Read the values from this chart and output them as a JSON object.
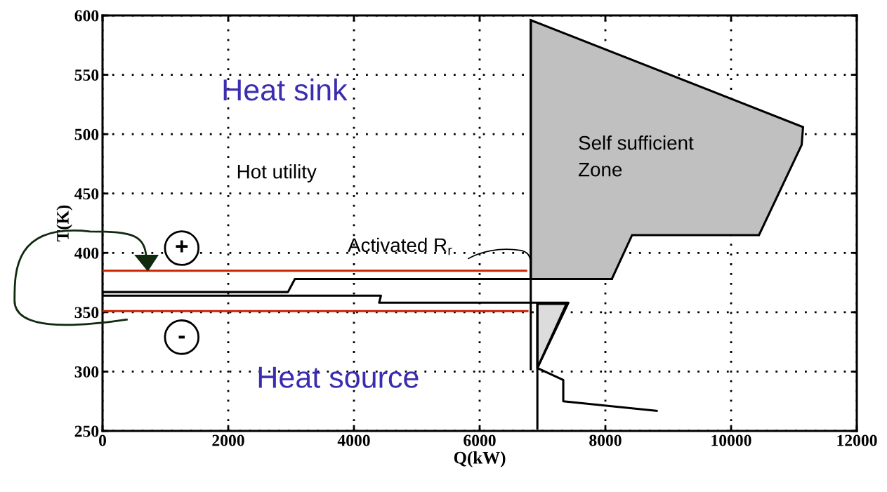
{
  "chart_data": {
    "type": "line",
    "xlabel": "Q(kW)",
    "ylabel": "T(K)",
    "xlim": [
      0,
      12000
    ],
    "ylim": [
      250,
      600
    ],
    "xticks": [
      0,
      2000,
      4000,
      6000,
      8000,
      10000,
      12000
    ],
    "yticks": [
      250,
      300,
      350,
      400,
      450,
      500,
      550,
      600
    ],
    "grid": true,
    "line_style": "solid",
    "marker": "none",
    "series": [
      {
        "type": "area",
        "color": "#c0c0c0",
        "x": [
          6813,
          6813,
          11145,
          11123,
          10444,
          8425,
          8103,
          6813
        ],
        "values": [
          378,
          596,
          506,
          491,
          415,
          415,
          378,
          378
        ]
      },
      {
        "type": "area",
        "color": "#dcdcdc",
        "x": [
          6918,
          7380,
          6918
        ],
        "values": [
          357,
          357,
          303
        ]
      },
      {
        "color": "#000000",
        "x": [
          0,
          2950,
          3060,
          8103
        ],
        "values": [
          367,
          367,
          378,
          378
        ]
      },
      {
        "color": "#000000",
        "x": [
          0,
          4430,
          4400,
          7412,
          6918,
          7330,
          7330,
          8816
        ],
        "values": [
          364,
          364,
          358,
          358,
          303,
          293,
          275,
          267
        ]
      },
      {
        "color": "#000000",
        "x": [
          6813,
          6813
        ],
        "values": [
          596,
          302
        ]
      },
      {
        "color": "#000000",
        "x": [
          6918,
          6918
        ],
        "values": [
          357,
          252
        ]
      },
      {
        "color": "#cc2200",
        "x": [
          0,
          6740
        ],
        "values": [
          385,
          385
        ]
      },
      {
        "color": "#cc2200",
        "x": [
          0,
          6760
        ],
        "values": [
          351,
          351
        ]
      }
    ],
    "annotations": [
      "Heat sink",
      "Hot utility",
      {
        "text": "Activated R$_{r}$",
        "x": 6813,
        "y": 385
      },
      "Self sufficient\nZone",
      "+",
      "-",
      "Heat source"
    ]
  }
}
